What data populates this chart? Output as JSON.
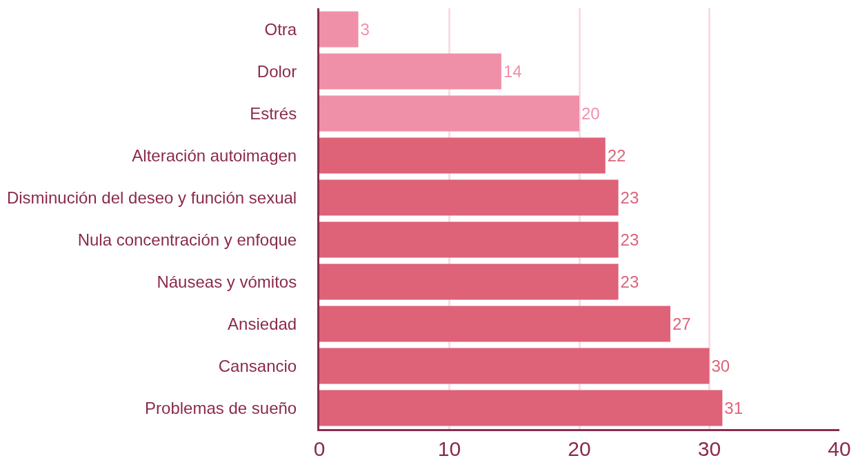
{
  "chart_data": {
    "type": "bar",
    "orientation": "horizontal",
    "categories": [
      "Otra",
      "Dolor",
      "Estrés",
      "Alteración autoimagen",
      "Disminución del deseo y función sexual",
      "Nula concentración y enfoque",
      "Náuseas y vómitos",
      "Ansiedad",
      "Cansancio",
      "Problemas de sueño"
    ],
    "values": [
      3,
      14,
      20,
      22,
      23,
      23,
      23,
      27,
      30,
      31
    ],
    "colors": [
      "#f090a8",
      "#f090a8",
      "#f090a8",
      "#de6278",
      "#de6278",
      "#de6278",
      "#de6278",
      "#de6278",
      "#de6278",
      "#de6278"
    ],
    "xlim": [
      0,
      40
    ],
    "xticks": [
      0,
      10,
      20,
      30,
      40
    ],
    "grid": "x",
    "data_labels": true
  }
}
